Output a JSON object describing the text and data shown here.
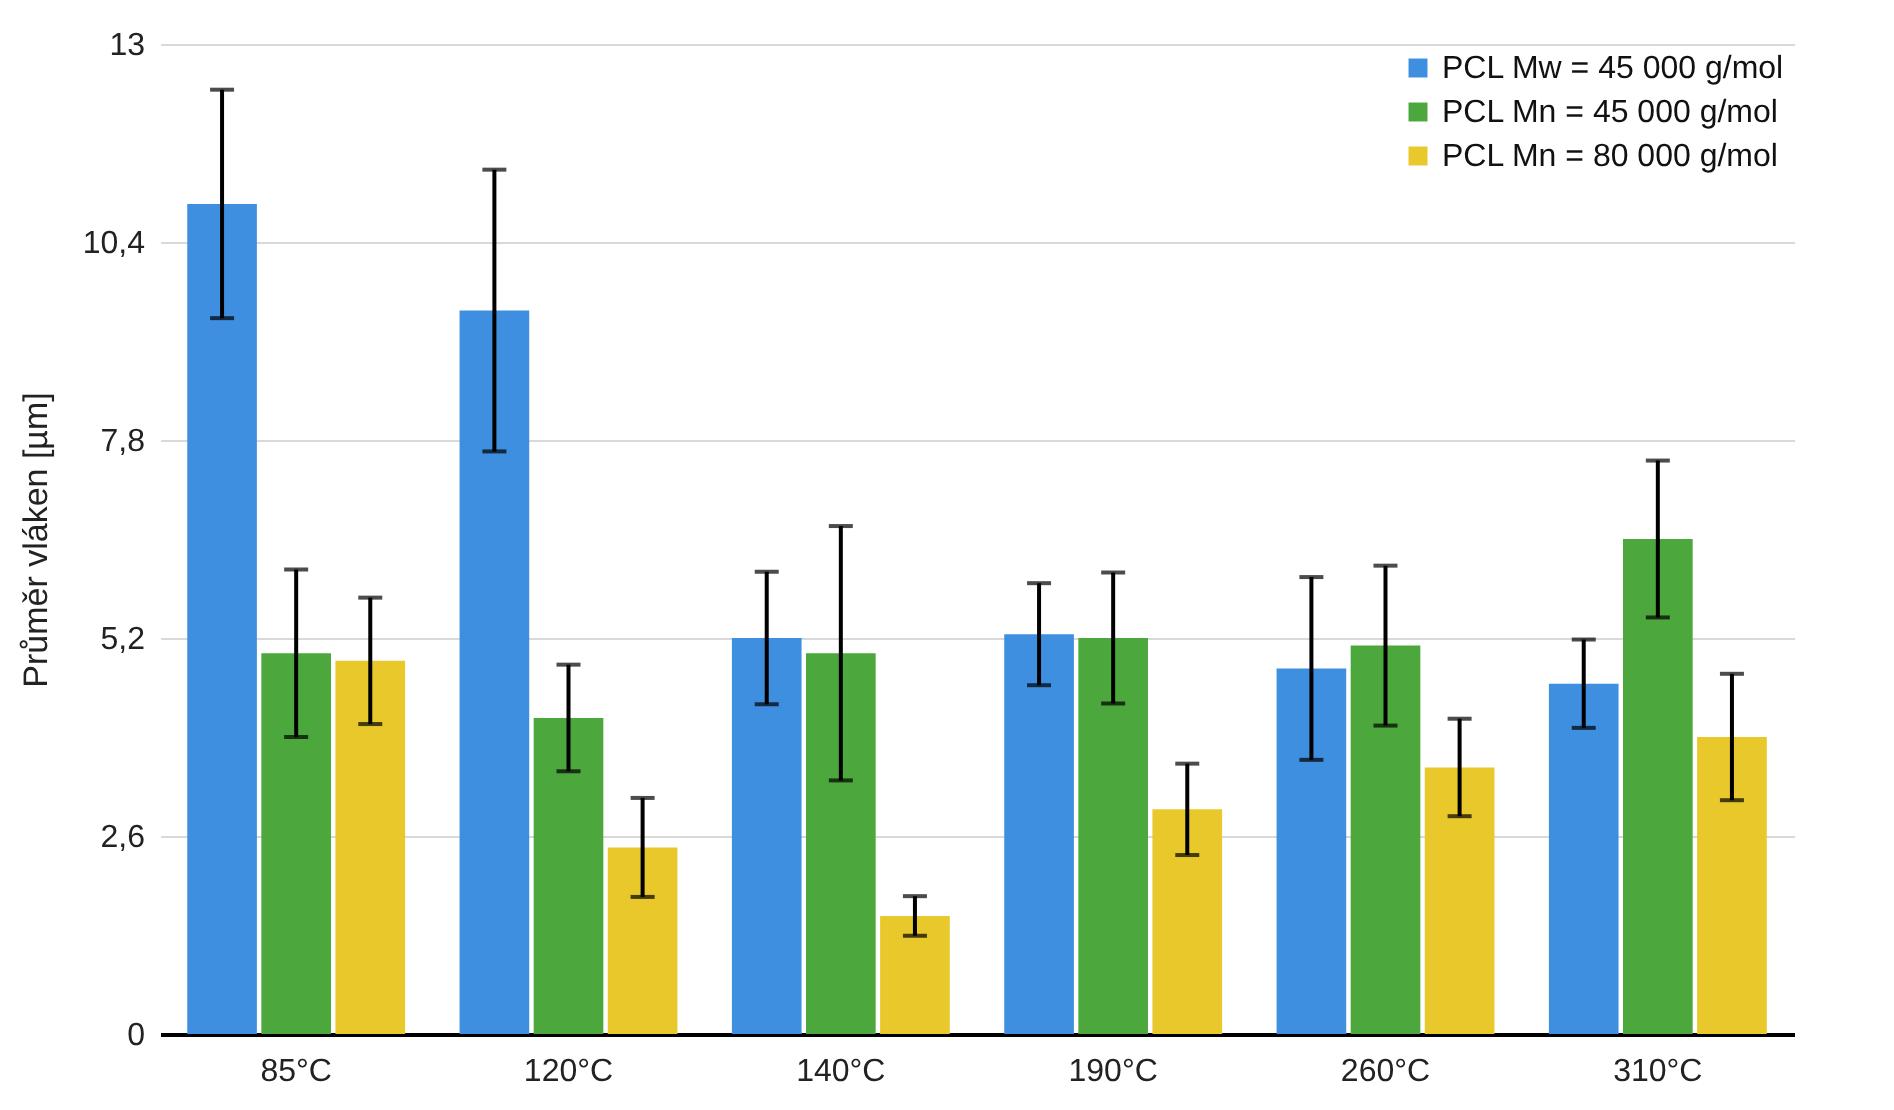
{
  "chart_data": {
    "type": "bar",
    "ylabel": "Průměr vláken [µm]",
    "categories": [
      "85°C",
      "120°C",
      "140°C",
      "190°C",
      "260°C",
      "310°C"
    ],
    "series": [
      {
        "name": "PCL Mw = 45 000 g/mol",
        "color": "#3f8fe0",
        "values": [
          10.9,
          9.5,
          5.2,
          5.25,
          4.8,
          4.6
        ],
        "errors": [
          1.5,
          1.85,
          0.87,
          0.67,
          1.2,
          0.58
        ]
      },
      {
        "name": "PCL Mn = 45 000 g/mol",
        "color": "#4ca83c",
        "values": [
          5.0,
          4.15,
          5.0,
          5.2,
          5.1,
          6.5
        ],
        "errors": [
          1.1,
          0.7,
          1.67,
          0.86,
          1.05,
          1.03
        ]
      },
      {
        "name": "PCL Mn = 80 000 g/mol",
        "color": "#e8c82a",
        "values": [
          4.9,
          2.45,
          1.55,
          2.95,
          3.5,
          3.9
        ],
        "errors": [
          0.83,
          0.65,
          0.26,
          0.6,
          0.64,
          0.83
        ]
      }
    ],
    "ylim": [
      0,
      13
    ],
    "yticks": [
      0,
      {
        "value": 2.6,
        "label": "2,6"
      },
      {
        "value": 5.2,
        "label": "5,2"
      },
      {
        "value": 7.8,
        "label": "7,8"
      },
      {
        "value": 10.4,
        "label": "10,4"
      },
      13
    ],
    "grid": "y",
    "legend": "top right"
  }
}
